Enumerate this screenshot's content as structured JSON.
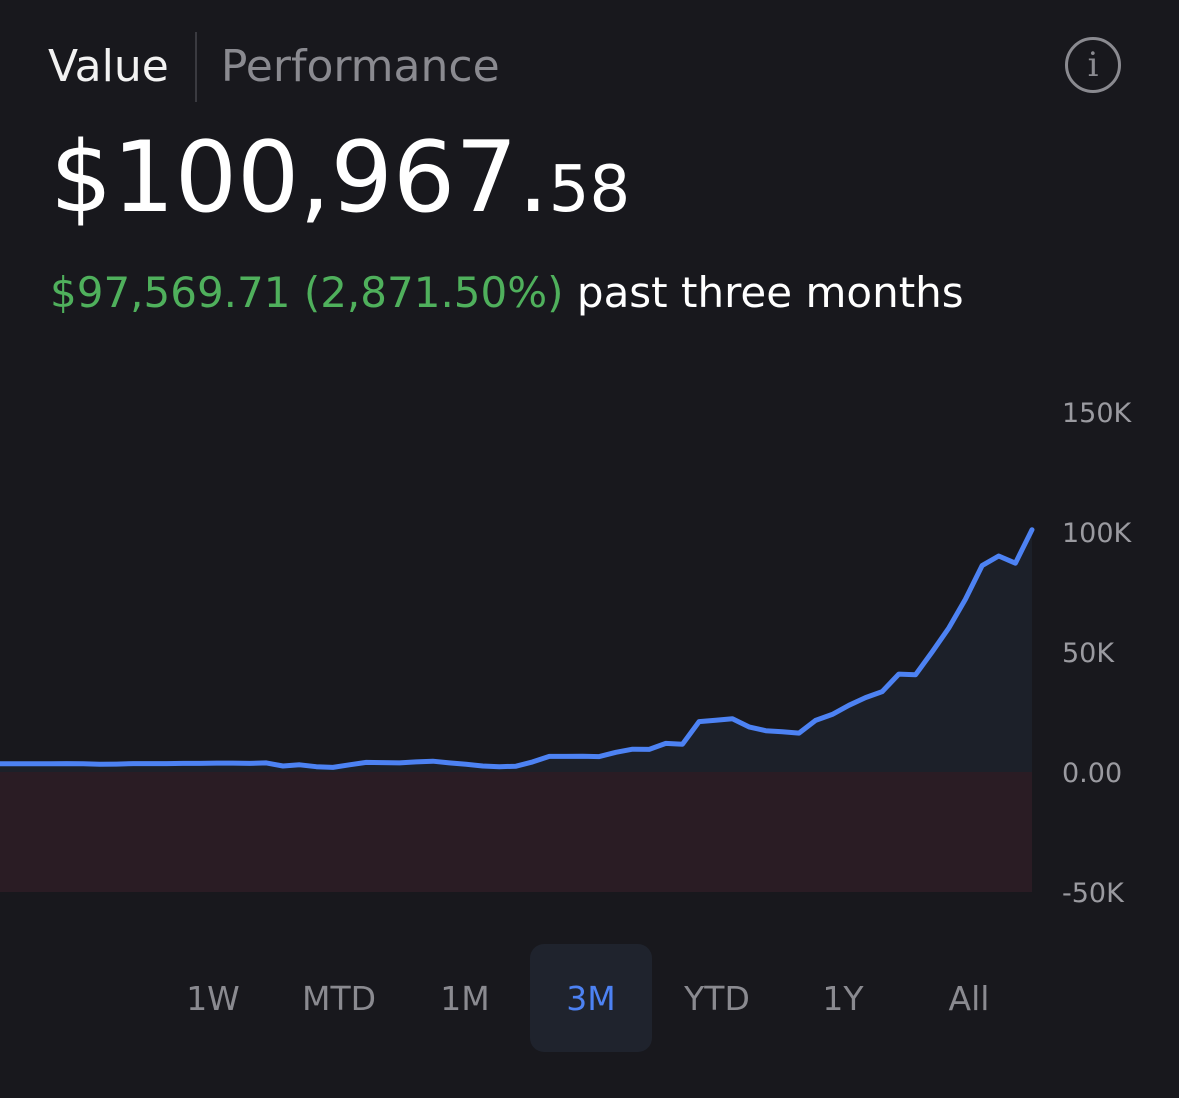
{
  "tabs": [
    {
      "label": "Value",
      "active": true
    },
    {
      "label": "Performance",
      "active": false
    }
  ],
  "info_icon": "info-circle-icon",
  "info_glyph": "i",
  "value": {
    "dollars": "$100,967.",
    "cents": "58"
  },
  "change": {
    "amount": "$97,569.71 (2,871.50%)",
    "period": "past three months"
  },
  "colors": {
    "line": "#4d82f3",
    "positive_area": "#1c2029",
    "negative_area": "#2a1c24",
    "gain": "#4fb05c",
    "tick_label": "#9a9aa0"
  },
  "chart_data": {
    "type": "area",
    "ylim": [
      -50000,
      150000
    ],
    "y_ticks": [
      {
        "value": 150000,
        "label": "150K"
      },
      {
        "value": 100000,
        "label": "100K"
      },
      {
        "value": 50000,
        "label": "50K"
      },
      {
        "value": 0,
        "label": "0.00"
      },
      {
        "value": -50000,
        "label": "-50K"
      }
    ],
    "series": [
      {
        "values": [
          3400,
          3400,
          3400,
          3400,
          3500,
          3400,
          3200,
          3300,
          3500,
          3500,
          3500,
          3600,
          3600,
          3700,
          3700,
          3600,
          3800,
          2500,
          3000,
          2200,
          1900,
          3000,
          4000,
          3900,
          3800,
          4200,
          4500,
          3800,
          3200,
          2500,
          2200,
          2400,
          4200,
          6500,
          6500,
          6600,
          6400,
          8200,
          9500,
          9400,
          11900,
          11600,
          21000,
          21600,
          22200,
          18800,
          17200,
          16800,
          16200,
          21500,
          24000,
          27800,
          31000,
          33500,
          40800,
          40500,
          50000,
          60000,
          72000,
          86000,
          90000,
          87000,
          100967
        ]
      }
    ]
  },
  "ranges": [
    {
      "label": "1W",
      "selected": false
    },
    {
      "label": "MTD",
      "selected": false
    },
    {
      "label": "1M",
      "selected": false
    },
    {
      "label": "3M",
      "selected": true
    },
    {
      "label": "YTD",
      "selected": false
    },
    {
      "label": "1Y",
      "selected": false
    },
    {
      "label": "All",
      "selected": false
    }
  ]
}
